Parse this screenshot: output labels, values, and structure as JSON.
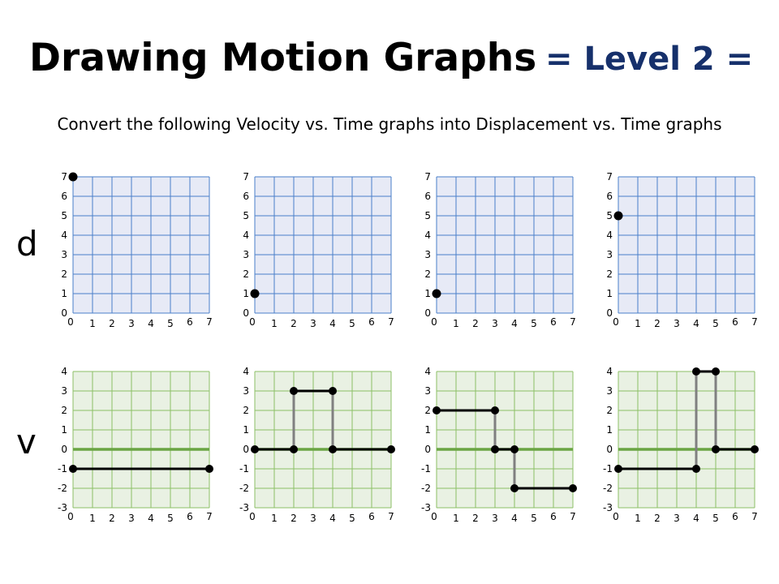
{
  "header": {
    "title": "Drawing Motion Graphs",
    "level": "= Level 2 =",
    "instruction": "Convert the following Velocity vs. Time graphs into Displacement vs. Time graphs"
  },
  "row_labels": {
    "d": "d",
    "v": "v"
  },
  "colors": {
    "d_grid": "#4a7fc9",
    "d_fill": "#e7eaf6",
    "v_grid": "#8cbf66",
    "v_fill": "#e9f1e3",
    "v_zero_line": "#6aa544",
    "vertical_connector": "#808080",
    "line_and_points": "#000000"
  },
  "chart_data": [
    {
      "type": "line",
      "quantity": "d",
      "x_ticks": [
        "0",
        "1",
        "2",
        "3",
        "4",
        "5",
        "6",
        "7"
      ],
      "y_ticks": [
        "0",
        "1",
        "2",
        "3",
        "4",
        "5",
        "6",
        "7"
      ],
      "xlim": [
        0,
        7
      ],
      "ylim": [
        0,
        7
      ],
      "start_point": [
        0,
        7
      ]
    },
    {
      "type": "line",
      "quantity": "d",
      "x_ticks": [
        "0",
        "1",
        "2",
        "3",
        "4",
        "5",
        "6",
        "7"
      ],
      "y_ticks": [
        "0",
        "1",
        "2",
        "3",
        "4",
        "5",
        "6",
        "7"
      ],
      "xlim": [
        0,
        7
      ],
      "ylim": [
        0,
        7
      ],
      "start_point": [
        0,
        1
      ]
    },
    {
      "type": "line",
      "quantity": "d",
      "x_ticks": [
        "0",
        "1",
        "2",
        "3",
        "4",
        "5",
        "6",
        "7"
      ],
      "y_ticks": [
        "0",
        "1",
        "2",
        "3",
        "4",
        "5",
        "6",
        "7"
      ],
      "xlim": [
        0,
        7
      ],
      "ylim": [
        0,
        7
      ],
      "start_point": [
        0,
        1
      ]
    },
    {
      "type": "line",
      "quantity": "d",
      "x_ticks": [
        "0",
        "1",
        "2",
        "3",
        "4",
        "5",
        "6",
        "7"
      ],
      "y_ticks": [
        "0",
        "1",
        "2",
        "3",
        "4",
        "5",
        "6",
        "7"
      ],
      "xlim": [
        0,
        7
      ],
      "ylim": [
        0,
        7
      ],
      "start_point": [
        0,
        5
      ]
    },
    {
      "type": "line",
      "quantity": "v",
      "x_ticks": [
        "0",
        "1",
        "2",
        "3",
        "4",
        "5",
        "6",
        "7"
      ],
      "y_ticks": [
        "-3",
        "-2",
        "-1",
        "0",
        "1",
        "2",
        "3",
        "4"
      ],
      "xlim": [
        0,
        7
      ],
      "ylim": [
        -3,
        4
      ],
      "segments": [
        [
          [
            0,
            -1
          ],
          [
            7,
            -1
          ]
        ]
      ],
      "jumps": []
    },
    {
      "type": "line",
      "quantity": "v",
      "x_ticks": [
        "0",
        "1",
        "2",
        "3",
        "4",
        "5",
        "6",
        "7"
      ],
      "y_ticks": [
        "-3",
        "-2",
        "-1",
        "0",
        "1",
        "2",
        "3",
        "4"
      ],
      "xlim": [
        0,
        7
      ],
      "ylim": [
        -3,
        4
      ],
      "segments": [
        [
          [
            0,
            0
          ],
          [
            2,
            0
          ]
        ],
        [
          [
            2,
            3
          ],
          [
            4,
            3
          ]
        ],
        [
          [
            4,
            0
          ],
          [
            7,
            0
          ]
        ]
      ],
      "jumps": [
        [
          2,
          0,
          3
        ],
        [
          4,
          3,
          0
        ]
      ]
    },
    {
      "type": "line",
      "quantity": "v",
      "x_ticks": [
        "0",
        "1",
        "2",
        "3",
        "4",
        "5",
        "6",
        "7"
      ],
      "y_ticks": [
        "-3",
        "-2",
        "-1",
        "0",
        "1",
        "2",
        "3",
        "4"
      ],
      "xlim": [
        0,
        7
      ],
      "ylim": [
        -3,
        4
      ],
      "segments": [
        [
          [
            0,
            2
          ],
          [
            3,
            2
          ]
        ],
        [
          [
            3,
            0
          ],
          [
            4,
            0
          ]
        ],
        [
          [
            4,
            -2
          ],
          [
            7,
            -2
          ]
        ]
      ],
      "jumps": [
        [
          3,
          2,
          0
        ],
        [
          4,
          0,
          -2
        ]
      ]
    },
    {
      "type": "line",
      "quantity": "v",
      "x_ticks": [
        "0",
        "1",
        "2",
        "3",
        "4",
        "5",
        "6",
        "7"
      ],
      "y_ticks": [
        "-3",
        "-2",
        "-1",
        "0",
        "1",
        "2",
        "3",
        "4"
      ],
      "xlim": [
        0,
        7
      ],
      "ylim": [
        -3,
        4
      ],
      "segments": [
        [
          [
            0,
            -1
          ],
          [
            4,
            -1
          ]
        ],
        [
          [
            4,
            4
          ],
          [
            5,
            4
          ]
        ],
        [
          [
            5,
            0
          ],
          [
            7,
            0
          ]
        ]
      ],
      "jumps": [
        [
          4,
          -1,
          4
        ],
        [
          5,
          4,
          0
        ]
      ]
    }
  ]
}
